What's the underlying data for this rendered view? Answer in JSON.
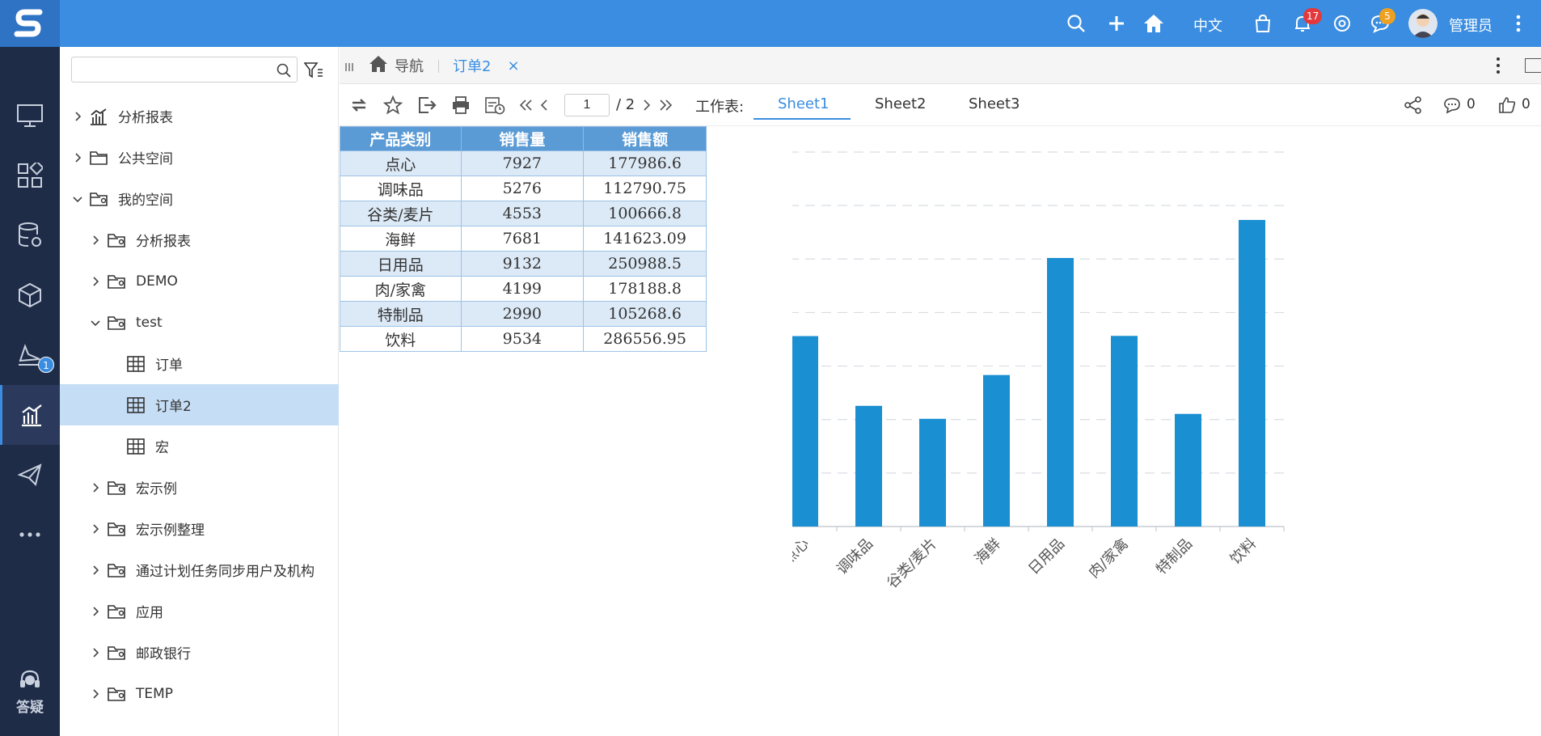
{
  "topbar": {
    "lang_label": "中文",
    "notif_count": "17",
    "message_count": "5",
    "user_name": "管理员",
    "accent": "#3a8de0"
  },
  "leftnav": {
    "analysis_badge": "1",
    "help_label": "答疑"
  },
  "tree": {
    "search_placeholder": "",
    "items": [
      {
        "label": "分析报表"
      },
      {
        "label": "公共空间"
      },
      {
        "label": "我的空间"
      },
      {
        "label": "分析报表"
      },
      {
        "label": "DEMO"
      },
      {
        "label": "test"
      },
      {
        "label": "订单"
      },
      {
        "label": "订单2"
      },
      {
        "label": "宏"
      },
      {
        "label": "宏示例"
      },
      {
        "label": "宏示例整理"
      },
      {
        "label": "通过计划任务同步用户及机构"
      },
      {
        "label": "应用"
      },
      {
        "label": "邮政银行"
      },
      {
        "label": "TEMP"
      }
    ]
  },
  "tabs": {
    "home_label": "导航",
    "active_label": "订单2",
    "close_glyph": "×"
  },
  "toolbar": {
    "page_current": "1",
    "page_total": "/ 2",
    "sheet_label": "工作表:",
    "sheets": [
      "Sheet1",
      "Sheet2",
      "Sheet3"
    ],
    "comment_count": "0",
    "like_count": "0"
  },
  "table": {
    "headers": [
      "产品类别",
      "销售量",
      "销售额"
    ],
    "rows": [
      [
        "点心",
        "7927",
        "177986.6"
      ],
      [
        "调味品",
        "5276",
        "112790.75"
      ],
      [
        "谷类/麦片",
        "4553",
        "100666.8"
      ],
      [
        "海鲜",
        "7681",
        "141623.09"
      ],
      [
        "日用品",
        "9132",
        "250988.5"
      ],
      [
        "肉/家禽",
        "4199",
        "178188.8"
      ],
      [
        "特制品",
        "2990",
        "105268.6"
      ],
      [
        "饮料",
        "9534",
        "286556.95"
      ]
    ]
  },
  "chart_data": {
    "type": "bar",
    "categories": [
      "点心",
      "调味品",
      "谷类/麦片",
      "海鲜",
      "日用品",
      "肉/家禽",
      "特制品",
      "饮料"
    ],
    "values": [
      177986.6,
      112790.75,
      100666.8,
      141623.09,
      250988.5,
      178188.8,
      105268.6,
      286556.95
    ],
    "yticks": [
      "0",
      "50000",
      "100000",
      "150000",
      "200000",
      "250000",
      "300000",
      "350000"
    ],
    "ylim": [
      0,
      350000
    ],
    "grid": true,
    "bar_color": "#1a8fd1"
  }
}
